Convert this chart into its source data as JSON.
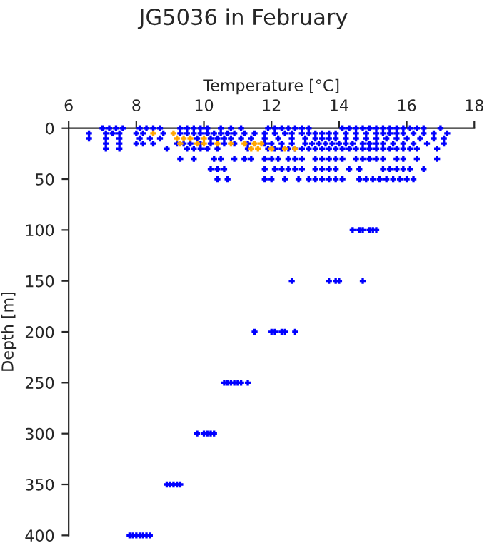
{
  "chart_data": {
    "type": "scatter",
    "title": "JG5036 in February",
    "xlabel": "Temperature [°C]",
    "ylabel": "Depth [m]",
    "xlim": [
      6,
      18
    ],
    "xticks": [
      6,
      8,
      10,
      12,
      14,
      16,
      18
    ],
    "ylim": [
      400,
      0
    ],
    "yticks": [
      0,
      50,
      100,
      150,
      200,
      250,
      300,
      350,
      400
    ],
    "grid": false,
    "marker": "cross",
    "series": [
      {
        "color": "#0000ff",
        "x": [
          7.0,
          7.2,
          7.4,
          7.6,
          8.1,
          8.3,
          8.5,
          8.7,
          9.3,
          9.5,
          9.7,
          9.9,
          10.1,
          10.5,
          10.8,
          11.1,
          11.9,
          12.1,
          12.3,
          12.5,
          12.7,
          12.9,
          13.1,
          14.1,
          14.3,
          14.5,
          14.7,
          14.9,
          15.1,
          15.3,
          15.5,
          15.7,
          15.9,
          16.1,
          16.3,
          16.5,
          17.0,
          6.6,
          7.1,
          7.3,
          7.5,
          8.0,
          8.2,
          8.8,
          9.3,
          9.5,
          9.7,
          9.9,
          10.1,
          10.3,
          10.5,
          10.7,
          10.9,
          11.2,
          11.5,
          11.8,
          12.1,
          12.4,
          12.6,
          12.9,
          13.1,
          13.3,
          13.5,
          13.7,
          13.9,
          14.2,
          14.5,
          14.8,
          15.1,
          15.3,
          15.5,
          15.7,
          15.9,
          16.2,
          16.5,
          16.8,
          17.2,
          6.6,
          7.1,
          7.5,
          8.1,
          8.4,
          8.7,
          9.8,
          10.2,
          10.4,
          10.6,
          10.8,
          11.1,
          11.4,
          11.8,
          12.2,
          12.6,
          13.0,
          13.3,
          13.5,
          13.7,
          13.9,
          14.2,
          14.5,
          14.8,
          15.1,
          15.4,
          15.7,
          16.0,
          16.4,
          16.8,
          17.1,
          7.1,
          7.5,
          8.0,
          8.2,
          8.5,
          9.2,
          9.4,
          9.6,
          9.9,
          10.2,
          10.6,
          10.9,
          11.3,
          11.8,
          12.0,
          12.3,
          12.6,
          13.0,
          13.2,
          13.4,
          13.6,
          13.8,
          14.0,
          14.2,
          14.4,
          14.7,
          14.9,
          15.1,
          15.3,
          15.6,
          15.9,
          16.2,
          16.6,
          17.1,
          7.1,
          7.5,
          8.9,
          9.5,
          9.7,
          9.9,
          10.1,
          10.4,
          11.3,
          11.9,
          12.1,
          12.3,
          12.5,
          12.7,
          12.9,
          13.1,
          13.3,
          13.5,
          13.7,
          13.9,
          14.1,
          14.3,
          14.5,
          14.7,
          14.9,
          15.1,
          15.3,
          15.5,
          15.7,
          15.9,
          16.1,
          16.3,
          16.9,
          9.3,
          9.7,
          10.3,
          10.5,
          10.9,
          11.2,
          11.4,
          11.8,
          12.0,
          12.2,
          12.5,
          12.7,
          12.9,
          13.3,
          13.5,
          13.7,
          13.9,
          14.1,
          14.5,
          14.7,
          14.9,
          15.1,
          15.3,
          15.7,
          15.9,
          16.3,
          16.9,
          10.2,
          10.4,
          10.6,
          11.8,
          12.1,
          12.3,
          12.5,
          12.7,
          12.9,
          13.3,
          13.5,
          13.7,
          13.9,
          14.3,
          14.6,
          15.3,
          15.5,
          15.7,
          15.9,
          16.1,
          16.5,
          10.4,
          10.7,
          11.8,
          12.0,
          12.4,
          12.8,
          13.1,
          13.3,
          13.5,
          13.7,
          13.9,
          14.1,
          14.6,
          14.8,
          15.0,
          15.2,
          15.4,
          15.6,
          15.8,
          16.0,
          16.2,
          14.4,
          14.6,
          14.7,
          14.9,
          15.0,
          15.1,
          12.6,
          13.7,
          13.9,
          14.0,
          14.7,
          11.5,
          12.0,
          12.1,
          12.3,
          12.4,
          12.7,
          10.6,
          10.7,
          10.8,
          10.9,
          11.0,
          11.1,
          11.3,
          9.8,
          10.0,
          10.1,
          10.2,
          10.3,
          8.9,
          9.0,
          9.1,
          9.2,
          9.3,
          7.8,
          7.9,
          8.0,
          8.1,
          8.2,
          8.3,
          8.4
        ],
        "values": [
          0,
          0,
          0,
          0,
          0,
          0,
          0,
          0,
          0,
          0,
          0,
          0,
          0,
          0,
          0,
          0,
          0,
          0,
          0,
          0,
          0,
          0,
          0,
          0,
          0,
          0,
          0,
          0,
          0,
          0,
          0,
          0,
          0,
          0,
          0,
          0,
          0,
          5,
          5,
          5,
          5,
          5,
          5,
          5,
          5,
          5,
          5,
          5,
          5,
          5,
          5,
          5,
          5,
          5,
          5,
          5,
          5,
          5,
          5,
          5,
          5,
          5,
          5,
          5,
          5,
          5,
          5,
          5,
          5,
          5,
          5,
          5,
          5,
          5,
          5,
          5,
          5,
          10,
          10,
          10,
          10,
          10,
          10,
          10,
          10,
          10,
          10,
          10,
          10,
          10,
          10,
          10,
          10,
          10,
          10,
          10,
          10,
          10,
          10,
          10,
          10,
          10,
          10,
          10,
          10,
          10,
          10,
          10,
          15,
          15,
          15,
          15,
          15,
          15,
          15,
          15,
          15,
          15,
          15,
          15,
          15,
          15,
          15,
          15,
          15,
          15,
          15,
          15,
          15,
          15,
          15,
          15,
          15,
          15,
          15,
          15,
          15,
          15,
          15,
          15,
          15,
          15,
          20,
          20,
          20,
          20,
          20,
          20,
          20,
          20,
          20,
          20,
          20,
          20,
          20,
          20,
          20,
          20,
          20,
          20,
          20,
          20,
          20,
          20,
          20,
          20,
          20,
          20,
          20,
          20,
          20,
          20,
          20,
          20,
          20,
          30,
          30,
          30,
          30,
          30,
          30,
          30,
          30,
          30,
          30,
          30,
          30,
          30,
          30,
          30,
          30,
          30,
          30,
          30,
          30,
          30,
          30,
          30,
          30,
          30,
          30,
          30,
          40,
          40,
          40,
          40,
          40,
          40,
          40,
          40,
          40,
          40,
          40,
          40,
          40,
          40,
          40,
          40,
          40,
          40,
          40,
          40,
          40,
          50,
          50,
          50,
          50,
          50,
          50,
          50,
          50,
          50,
          50,
          50,
          50,
          50,
          50,
          50,
          50,
          50,
          50,
          50,
          50,
          50,
          100,
          100,
          100,
          100,
          100,
          100,
          150,
          150,
          150,
          150,
          150,
          200,
          200,
          200,
          200,
          200,
          200,
          250,
          250,
          250,
          250,
          250,
          250,
          250,
          300,
          300,
          300,
          300,
          300,
          350,
          350,
          350,
          350,
          350,
          400,
          400,
          400,
          400,
          400,
          400,
          400
        ]
      },
      {
        "color": "#ffa500",
        "x": [
          8.5,
          9.1,
          9.2,
          9.4,
          9.6,
          10.0,
          9.3,
          9.8,
          10.0,
          10.4,
          10.8,
          11.2,
          11.5,
          11.7,
          11.4,
          11.6,
          12.0,
          12.4,
          12.7
        ],
        "values": [
          5,
          5,
          10,
          10,
          10,
          10,
          15,
          15,
          15,
          15,
          15,
          15,
          15,
          15,
          20,
          20,
          20,
          20,
          20
        ]
      }
    ]
  }
}
